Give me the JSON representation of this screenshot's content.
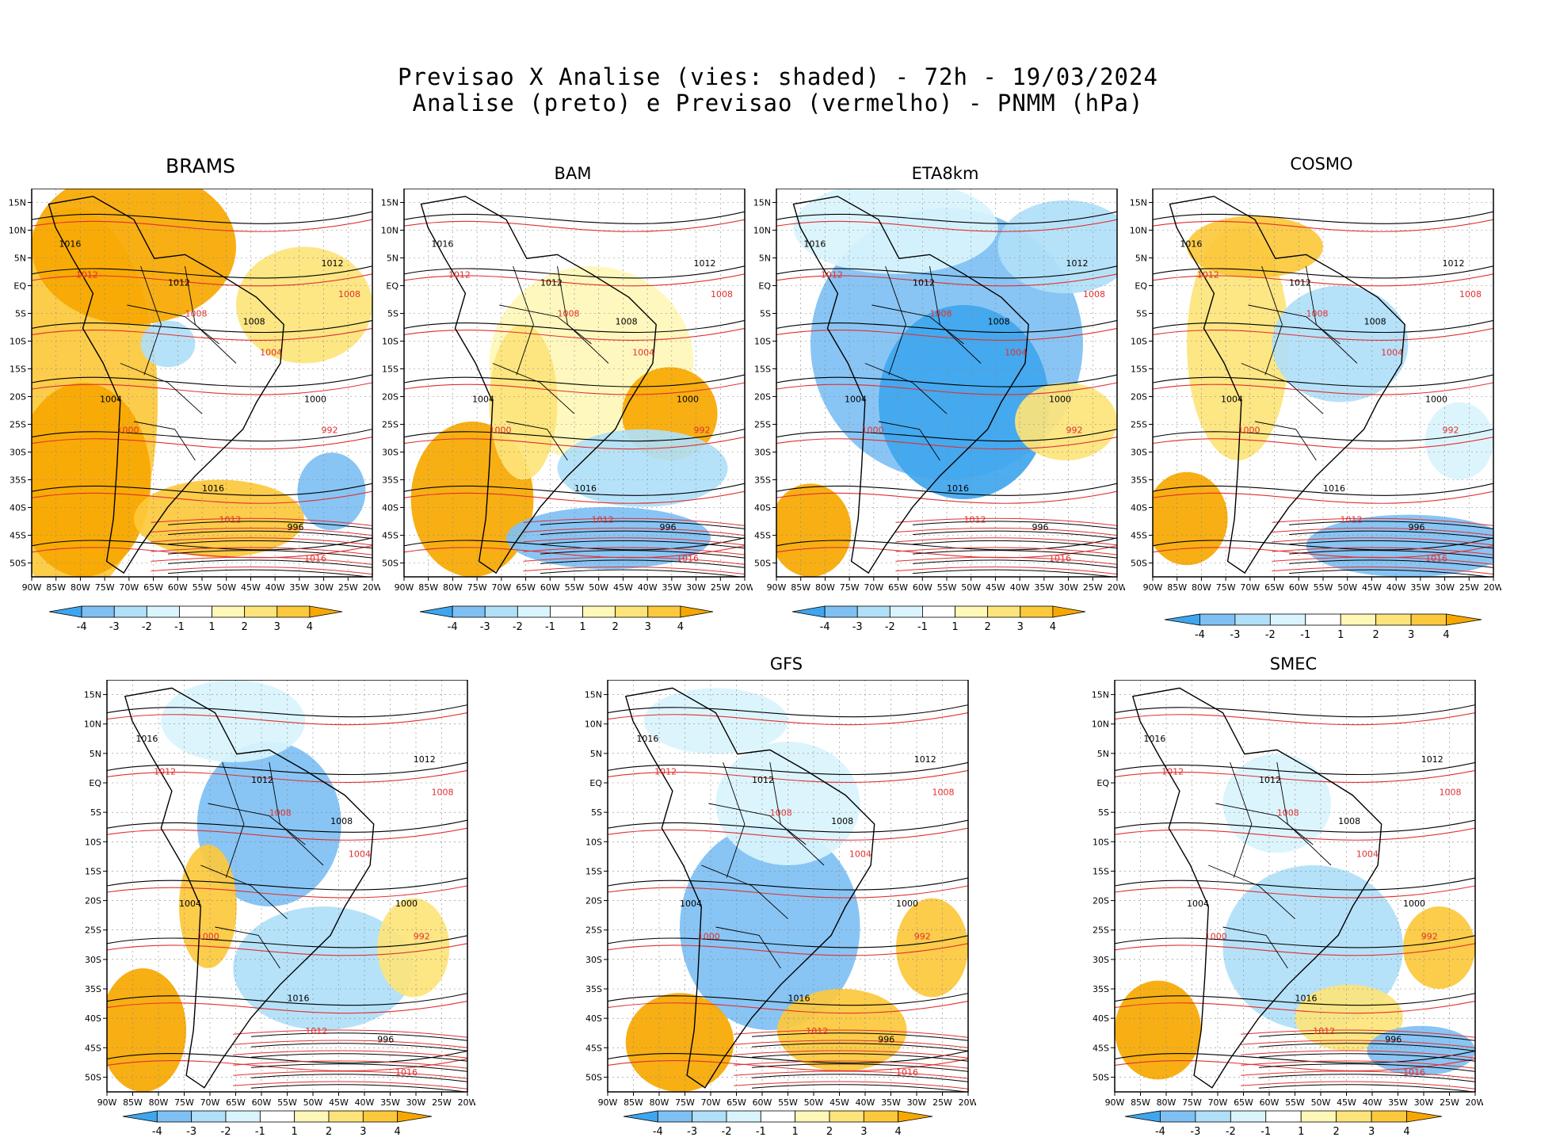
{
  "header": {
    "line1": "Previsao X Analise (vies: shaded) - 72h - 19/03/2024",
    "line2": "Analise (preto) e Previsao (vermelho) - PNMM (hPa)"
  },
  "colors": {
    "neg4": "#3ea6ee",
    "neg3": "#7ec0f4",
    "neg2": "#b0dff8",
    "neg1": "#d9f4fd",
    "pos1": "#fff7b8",
    "pos2": "#fde47a",
    "pos3": "#fcc83c",
    "pos4": "#f7a800",
    "analysis": "#000000",
    "forecast": "#e03030"
  },
  "lat_ticks": [
    "15N",
    "10N",
    "5N",
    "EQ",
    "5S",
    "10S",
    "15S",
    "20S",
    "25S",
    "30S",
    "35S",
    "40S",
    "45S",
    "50S"
  ],
  "lon_ticks": [
    "90W",
    "85W",
    "80W",
    "75W",
    "70W",
    "65W",
    "60W",
    "55W",
    "50W",
    "45W",
    "40W",
    "35W",
    "30W",
    "25W",
    "20W"
  ],
  "colorbar_labels": [
    "-4",
    "-3",
    "-2",
    "-1",
    "1",
    "2",
    "3",
    "4"
  ],
  "panels": [
    {
      "title": "BRAMS"
    },
    {
      "title": "BAM"
    },
    {
      "title": "ETA8km"
    },
    {
      "title": "COSMO"
    },
    {
      "title": ""
    },
    {
      "title": "GFS"
    },
    {
      "title": "SMEC"
    }
  ],
  "isobar_labels": {
    "black": [
      "1016",
      "1012",
      "1008",
      "1004",
      "1000",
      "996"
    ],
    "red": [
      "1016",
      "1012",
      "1008",
      "1004",
      "1000",
      "992"
    ]
  }
}
